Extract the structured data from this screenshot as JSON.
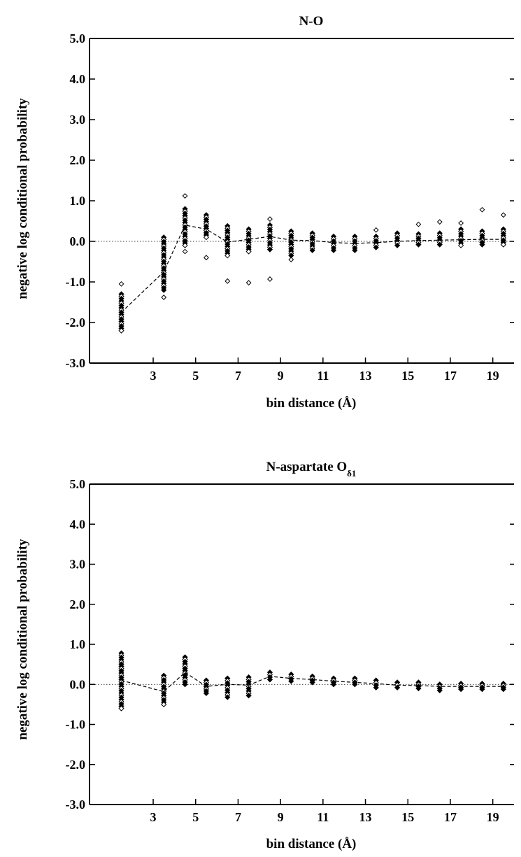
{
  "chart_data": [
    {
      "type": "scatter",
      "title": "N-O",
      "title_sub": "",
      "xlabel": "bin distance (Å)",
      "ylabel": "negative log conditional probability",
      "xlim": [
        0,
        20
      ],
      "ylim": [
        -3,
        5
      ],
      "xticks": [
        "3",
        "5",
        "7",
        "9",
        "11",
        "13",
        "15",
        "17",
        "19"
      ],
      "yticks": [
        "5.0",
        "4.0",
        "3.0",
        "2.0",
        "1.0",
        "0.0",
        "-1.0",
        "-2.0",
        "-3.0"
      ],
      "reference_line": 0,
      "average_line": {
        "x": [
          1.5,
          3.5,
          4.5,
          5.5,
          6.5,
          7.5,
          8.5,
          9.5,
          10.5,
          11.5,
          12.5,
          13.5,
          14.5,
          15.5,
          16.5,
          17.5,
          18.5,
          19.5
        ],
        "y": [
          -1.75,
          -0.75,
          0.4,
          0.3,
          -0.02,
          0.05,
          0.12,
          0.03,
          0.02,
          -0.03,
          -0.05,
          -0.03,
          0.0,
          0.02,
          0.03,
          0.04,
          0.05,
          0.05
        ]
      },
      "series": [
        {
          "x": 1.5,
          "band": [
            -2.2,
            -1.3
          ],
          "outliers": [
            -1.05
          ]
        },
        {
          "x": 3.5,
          "band": [
            -1.2,
            0.1
          ],
          "outliers": [
            -1.38
          ]
        },
        {
          "x": 4.5,
          "band": [
            -0.1,
            0.8
          ],
          "outliers": [
            1.12,
            -0.25
          ]
        },
        {
          "x": 5.5,
          "band": [
            0.1,
            0.65
          ],
          "outliers": [
            -0.4
          ]
        },
        {
          "x": 6.5,
          "band": [
            -0.35,
            0.38
          ],
          "outliers": [
            -0.98
          ]
        },
        {
          "x": 7.5,
          "band": [
            -0.25,
            0.3
          ],
          "outliers": [
            -1.02
          ]
        },
        {
          "x": 8.5,
          "band": [
            -0.2,
            0.4
          ],
          "outliers": [
            0.55,
            -0.93
          ]
        },
        {
          "x": 9.5,
          "band": [
            -0.35,
            0.25
          ],
          "outliers": [
            -0.45
          ]
        },
        {
          "x": 10.5,
          "band": [
            -0.22,
            0.2
          ],
          "outliers": []
        },
        {
          "x": 11.5,
          "band": [
            -0.22,
            0.12
          ],
          "outliers": []
        },
        {
          "x": 12.5,
          "band": [
            -0.22,
            0.12
          ],
          "outliers": []
        },
        {
          "x": 13.5,
          "band": [
            -0.15,
            0.12
          ],
          "outliers": [
            0.28
          ]
        },
        {
          "x": 14.5,
          "band": [
            -0.1,
            0.2
          ],
          "outliers": []
        },
        {
          "x": 15.5,
          "band": [
            -0.08,
            0.18
          ],
          "outliers": [
            0.42
          ]
        },
        {
          "x": 16.5,
          "band": [
            -0.08,
            0.2
          ],
          "outliers": [
            0.48
          ]
        },
        {
          "x": 17.5,
          "band": [
            -0.1,
            0.3
          ],
          "outliers": [
            0.45
          ]
        },
        {
          "x": 18.5,
          "band": [
            -0.08,
            0.25
          ],
          "outliers": [
            0.78
          ]
        },
        {
          "x": 19.5,
          "band": [
            -0.08,
            0.3
          ],
          "outliers": [
            0.65
          ]
        }
      ]
    },
    {
      "type": "scatter",
      "title": "N-aspartate O",
      "title_sub": "δ1",
      "xlabel": "bin distance (Å)",
      "ylabel": "negative log conditional probability",
      "xlim": [
        0,
        20
      ],
      "ylim": [
        -3,
        5
      ],
      "xticks": [
        "3",
        "5",
        "7",
        "9",
        "11",
        "13",
        "15",
        "17",
        "19"
      ],
      "yticks": [
        "5.0",
        "4.0",
        "3.0",
        "2.0",
        "1.0",
        "0.0",
        "-1.0",
        "-2.0",
        "-3.0"
      ],
      "reference_line": 0,
      "average_line": {
        "x": [
          1.5,
          3.5,
          4.5,
          5.5,
          6.5,
          7.5,
          8.5,
          9.5,
          10.5,
          11.5,
          12.5,
          13.5,
          14.5,
          15.5,
          16.5,
          17.5,
          18.5,
          19.5
        ],
        "y": [
          0.1,
          -0.18,
          0.3,
          -0.05,
          0.0,
          -0.02,
          0.2,
          0.15,
          0.12,
          0.08,
          0.05,
          0.02,
          -0.02,
          -0.03,
          -0.05,
          -0.05,
          -0.05,
          -0.05
        ]
      },
      "series": [
        {
          "x": 1.5,
          "band": [
            -0.6,
            0.78
          ],
          "outliers": []
        },
        {
          "x": 3.5,
          "band": [
            -0.5,
            0.22
          ],
          "outliers": []
        },
        {
          "x": 4.5,
          "band": [
            0.0,
            0.68
          ],
          "outliers": []
        },
        {
          "x": 5.5,
          "band": [
            -0.22,
            0.1
          ],
          "outliers": []
        },
        {
          "x": 6.5,
          "band": [
            -0.32,
            0.15
          ],
          "outliers": []
        },
        {
          "x": 7.5,
          "band": [
            -0.28,
            0.18
          ],
          "outliers": []
        },
        {
          "x": 8.5,
          "band": [
            0.12,
            0.3
          ],
          "outliers": []
        },
        {
          "x": 9.5,
          "band": [
            0.08,
            0.25
          ],
          "outliers": []
        },
        {
          "x": 10.5,
          "band": [
            0.05,
            0.2
          ],
          "outliers": []
        },
        {
          "x": 11.5,
          "band": [
            0.0,
            0.15
          ],
          "outliers": []
        },
        {
          "x": 12.5,
          "band": [
            0.0,
            0.15
          ],
          "outliers": []
        },
        {
          "x": 13.5,
          "band": [
            -0.08,
            0.1
          ],
          "outliers": []
        },
        {
          "x": 14.5,
          "band": [
            -0.08,
            0.05
          ],
          "outliers": []
        },
        {
          "x": 15.5,
          "band": [
            -0.1,
            0.05
          ],
          "outliers": []
        },
        {
          "x": 16.5,
          "band": [
            -0.15,
            0.0
          ],
          "outliers": []
        },
        {
          "x": 17.5,
          "band": [
            -0.12,
            0.02
          ],
          "outliers": []
        },
        {
          "x": 18.5,
          "band": [
            -0.12,
            0.02
          ],
          "outliers": []
        },
        {
          "x": 19.5,
          "band": [
            -0.12,
            0.02
          ],
          "outliers": []
        }
      ]
    }
  ]
}
